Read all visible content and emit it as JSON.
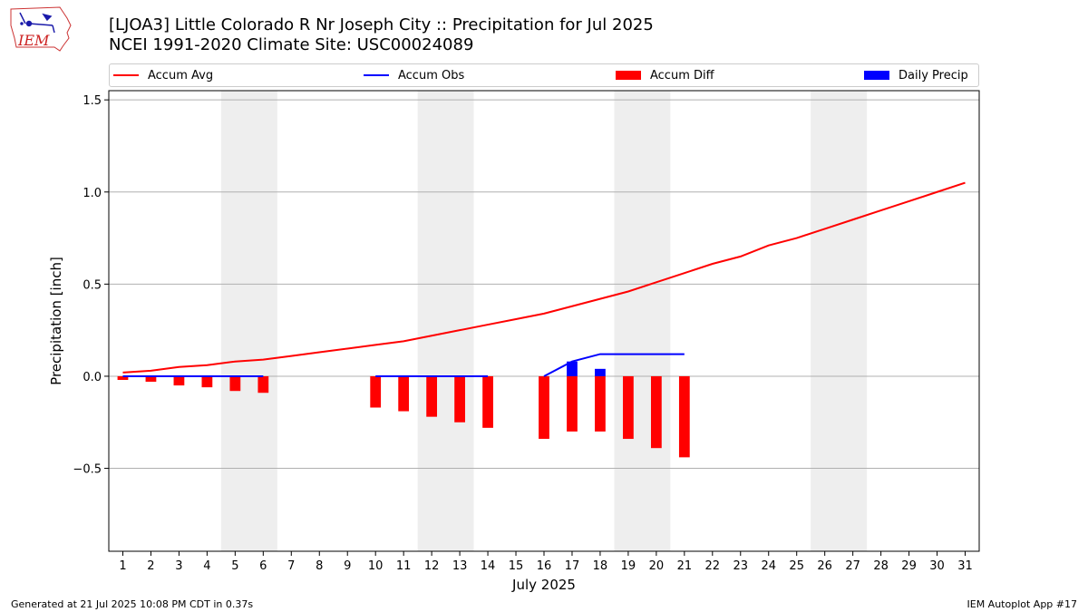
{
  "header": {
    "title_line1": "[LJOA3] Little Colorado R Nr Joseph City :: Precipitation for Jul 2025",
    "title_line2": "NCEI 1991-2020 Climate Site: USC00024089",
    "logo_text": "IEM"
  },
  "legend": {
    "items": [
      {
        "label": "Accum Avg",
        "color": "#ff0000",
        "kind": "line"
      },
      {
        "label": "Accum Obs",
        "color": "#0000ff",
        "kind": "line"
      },
      {
        "label": "Accum Diff",
        "color": "#ff0000",
        "kind": "bar"
      },
      {
        "label": "Daily Precip",
        "color": "#0000ff",
        "kind": "bar"
      }
    ]
  },
  "footer": {
    "left": "Generated at 21 Jul 2025 10:08 PM CDT in 0.37s",
    "right": "IEM Autoplot App #17"
  },
  "chart_data": {
    "type": "line",
    "title": "[LJOA3] Little Colorado R Nr Joseph City :: Precipitation for Jul 2025",
    "subtitle": "NCEI 1991-2020 Climate Site: USC00024089",
    "xlabel": "July 2025",
    "ylabel": "Precipitation [inch]",
    "xlim": [
      0.5,
      31.5
    ],
    "ylim": [
      -0.95,
      1.55
    ],
    "yticks": [
      -0.5,
      0.0,
      0.5,
      1.0,
      1.5
    ],
    "ytick_labels": [
      "−0.5",
      "0.0",
      "0.5",
      "1.0",
      "1.5"
    ],
    "xticks": [
      1,
      2,
      3,
      4,
      5,
      6,
      7,
      8,
      9,
      10,
      11,
      12,
      13,
      14,
      15,
      16,
      17,
      18,
      19,
      20,
      21,
      22,
      23,
      24,
      25,
      26,
      27,
      28,
      29,
      30,
      31
    ],
    "grid": "horizontal",
    "weekend_shading": [
      [
        4.5,
        6.5
      ],
      [
        11.5,
        13.5
      ],
      [
        18.5,
        20.5
      ],
      [
        25.5,
        27.5
      ]
    ],
    "shading_color": "#eeeeee",
    "series": [
      {
        "name": "Accum Avg",
        "kind": "line",
        "color": "#ff0000",
        "x": [
          1,
          2,
          3,
          4,
          5,
          6,
          7,
          8,
          9,
          10,
          11,
          12,
          13,
          14,
          15,
          16,
          17,
          18,
          19,
          20,
          21,
          22,
          23,
          24,
          25,
          26,
          27,
          28,
          29,
          30,
          31
        ],
        "values": [
          0.02,
          0.03,
          0.05,
          0.06,
          0.08,
          0.09,
          0.11,
          0.13,
          0.15,
          0.17,
          0.19,
          0.22,
          0.25,
          0.28,
          0.31,
          0.34,
          0.38,
          0.42,
          0.46,
          0.51,
          0.56,
          0.61,
          0.65,
          0.71,
          0.75,
          0.8,
          0.85,
          0.9,
          0.95,
          1.0,
          1.05
        ]
      },
      {
        "name": "Accum Obs",
        "kind": "line",
        "color": "#0000ff",
        "segments": [
          {
            "x": [
              1,
              2,
              3,
              4,
              5,
              6
            ],
            "values": [
              0,
              0,
              0,
              0,
              0,
              0
            ]
          },
          {
            "x": [
              10,
              11,
              12,
              13,
              14
            ],
            "values": [
              0,
              0,
              0,
              0,
              0
            ]
          },
          {
            "x": [
              16,
              17,
              18,
              19,
              20,
              21
            ],
            "values": [
              0,
              0.08,
              0.12,
              0.12,
              0.12,
              0.12
            ]
          }
        ]
      },
      {
        "name": "Accum Diff",
        "kind": "bar",
        "color": "#ff0000",
        "x": [
          1,
          2,
          3,
          4,
          5,
          6,
          10,
          11,
          12,
          13,
          14,
          16,
          17,
          18,
          19,
          20,
          21
        ],
        "values": [
          -0.02,
          -0.03,
          -0.05,
          -0.06,
          -0.08,
          -0.09,
          -0.17,
          -0.19,
          -0.22,
          -0.25,
          -0.28,
          -0.34,
          -0.3,
          -0.3,
          -0.34,
          -0.39,
          -0.44
        ]
      },
      {
        "name": "Daily Precip",
        "kind": "bar",
        "color": "#0000ff",
        "x": [
          17,
          18
        ],
        "values": [
          0.08,
          0.04
        ]
      }
    ]
  }
}
